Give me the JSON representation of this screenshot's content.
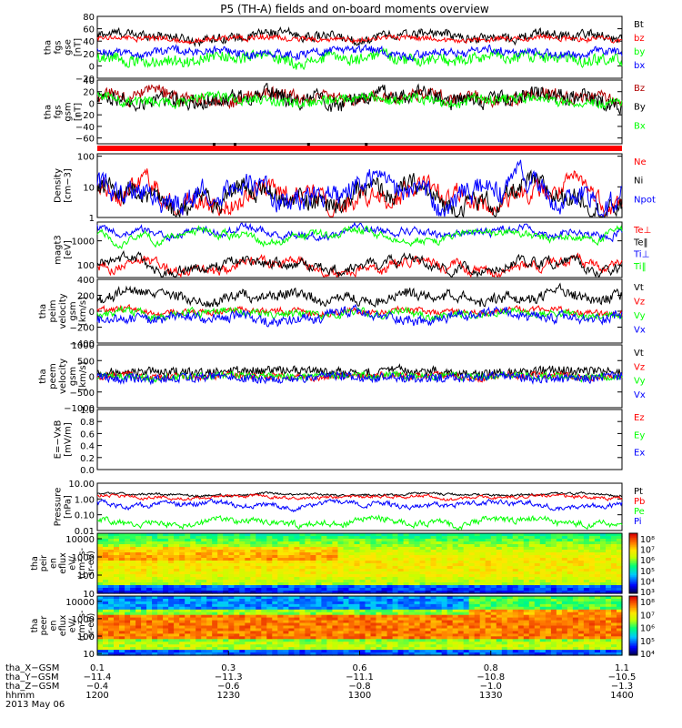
{
  "title": "P5 (TH-A) fields and on-board moments overview",
  "chart_data": {
    "type": "multi-panel-timeseries",
    "title": "P5 (TH-A) fields and on-board moments overview",
    "date_label": "2013 May 06",
    "time_range": [
      "12:00",
      "14:00"
    ],
    "colors": {
      "black": "#000000",
      "red": "#ff0000",
      "green": "#00ff00",
      "blue": "#0000ff",
      "darkred": "#b00000"
    },
    "panels": [
      {
        "id": "fgs-gse",
        "ylabel": [
          "tha",
          "fgs",
          "gse",
          "[nT]"
        ],
        "log": false,
        "ylim": [
          -20,
          80
        ],
        "ticks": [
          "80",
          "60",
          "40",
          "20",
          "0",
          "−20"
        ],
        "tickvals": [
          80,
          60,
          40,
          20,
          0,
          -20
        ],
        "series": [
          {
            "name": "Bt",
            "color": "#000000",
            "mean": 48,
            "amp": 8,
            "noise": 5
          },
          {
            "name": "bz",
            "color": "#ff0000",
            "mean": 44,
            "amp": 4,
            "noise": 3
          },
          {
            "name": "by",
            "color": "#00ff00",
            "mean": 12,
            "amp": 8,
            "noise": 7
          },
          {
            "name": "bx",
            "color": "#0000ff",
            "mean": 22,
            "amp": 6,
            "noise": 5
          }
        ]
      },
      {
        "id": "fgs-gsm",
        "ylabel": [
          "tha",
          "fgs",
          "gsm",
          "[nT]"
        ],
        "log": false,
        "ylim": [
          -70,
          40
        ],
        "ticks": [
          "40",
          "20",
          "0",
          "−20",
          "−40",
          "−60"
        ],
        "tickvals": [
          40,
          20,
          0,
          -20,
          -40,
          -60
        ],
        "series": [
          {
            "name": "Bz",
            "color": "#b00000",
            "mean": 10,
            "amp": 10,
            "noise": 8
          },
          {
            "name": "By",
            "color": "#000000",
            "mean": 8,
            "amp": 12,
            "noise": 10
          },
          {
            "name": "Bx",
            "color": "#00ff00",
            "mean": 5,
            "amp": 8,
            "noise": 6
          }
        ]
      },
      {
        "id": "density",
        "ylabel": [
          "Density",
          "[cm−3]"
        ],
        "log": true,
        "ylim": [
          1,
          120
        ],
        "ticks": [
          "100",
          "10",
          "1"
        ],
        "tickvals": [
          100,
          10,
          1
        ],
        "series": [
          {
            "name": "Ne",
            "color": "#ff0000",
            "mean": 5,
            "amp": 0.5,
            "noise": 0.3
          },
          {
            "name": "Ni",
            "color": "#000000",
            "mean": 4.5,
            "amp": 0.5,
            "noise": 0.3
          },
          {
            "name": "Npot",
            "color": "#0000ff",
            "mean": 6,
            "amp": 0.5,
            "noise": 0.35
          }
        ]
      },
      {
        "id": "temperature",
        "ylabel": [
          "magt3",
          "[eV]"
        ],
        "log": true,
        "ylim": [
          30,
          6000
        ],
        "ticks": [
          "1000",
          "100"
        ],
        "tickvals": [
          1000,
          100
        ],
        "series": [
          {
            "name": "Te⊥",
            "color": "#ff0000",
            "mean": 80,
            "amp": 0.4,
            "noise": 0.15
          },
          {
            "name": "Te‖",
            "color": "#000000",
            "mean": 100,
            "amp": 0.4,
            "noise": 0.15
          },
          {
            "name": "Ti⊥",
            "color": "#0000ff",
            "mean": 2400,
            "amp": 0.3,
            "noise": 0.12
          },
          {
            "name": "Ti‖",
            "color": "#00ff00",
            "mean": 1600,
            "amp": 0.3,
            "noise": 0.12
          }
        ]
      },
      {
        "id": "peim-velocity",
        "ylabel": [
          "tha",
          "peim",
          "velocity",
          "gsm",
          "[km/s]"
        ],
        "log": false,
        "ylim": [
          -400,
          400
        ],
        "ticks": [
          "400",
          "200",
          "0",
          "−200",
          "−400"
        ],
        "tickvals": [
          400,
          200,
          0,
          -200,
          -400
        ],
        "series": [
          {
            "name": "Vt",
            "color": "#000000",
            "mean": 180,
            "amp": 80,
            "noise": 40
          },
          {
            "name": "Vz",
            "color": "#ff0000",
            "mean": 0,
            "amp": 40,
            "noise": 25
          },
          {
            "name": "Vy",
            "color": "#00ff00",
            "mean": -30,
            "amp": 60,
            "noise": 30
          },
          {
            "name": "Vx",
            "color": "#0000ff",
            "mean": -80,
            "amp": 80,
            "noise": 40
          }
        ]
      },
      {
        "id": "peem-velocity",
        "ylabel": [
          "tha",
          "peem",
          "velocity",
          "gsm",
          "[km/s]"
        ],
        "log": false,
        "ylim": [
          -1000,
          1000
        ],
        "ticks": [
          "1000",
          "500",
          "0",
          "−500",
          "−1000"
        ],
        "tickvals": [
          1000,
          500,
          0,
          -500,
          -1000
        ],
        "series": [
          {
            "name": "Vt",
            "color": "#000000",
            "mean": 150,
            "amp": 80,
            "noise": 120
          },
          {
            "name": "Vz",
            "color": "#ff0000",
            "mean": 0,
            "amp": 60,
            "noise": 90
          },
          {
            "name": "Vy",
            "color": "#00ff00",
            "mean": 0,
            "amp": 60,
            "noise": 90
          },
          {
            "name": "Vx",
            "color": "#0000ff",
            "mean": -50,
            "amp": 80,
            "noise": 120
          }
        ]
      },
      {
        "id": "efield",
        "ylabel": [
          "E=−VxB",
          "[mV/m]"
        ],
        "log": false,
        "ylim": [
          0,
          1
        ],
        "ticks": [
          "1.0",
          "0.8",
          "0.6",
          "0.4",
          "0.2",
          "0.0"
        ],
        "tickvals": [
          1,
          0.8,
          0.6,
          0.4,
          0.2,
          0
        ],
        "series": [
          {
            "name": "Ez",
            "color": "#ff0000",
            "empty": true
          },
          {
            "name": "Ey",
            "color": "#00ff00",
            "empty": true
          },
          {
            "name": "Ex",
            "color": "#0000ff",
            "empty": true
          }
        ]
      },
      {
        "id": "pressure",
        "ylabel": [
          "Pressure",
          "[nPa]"
        ],
        "log": true,
        "ylim": [
          0.01,
          10
        ],
        "ticks": [
          "10.00",
          "1.00",
          "0.10",
          "0.01"
        ],
        "tickvals": [
          10,
          1,
          0.1,
          0.01
        ],
        "series": [
          {
            "name": "Pt",
            "color": "#000000",
            "mean": 1.9,
            "amp": 0.1,
            "noise": 0.08
          },
          {
            "name": "Pb",
            "color": "#ff0000",
            "mean": 1.3,
            "amp": 0.15,
            "noise": 0.1
          },
          {
            "name": "Pe",
            "color": "#00ff00",
            "mean": 0.035,
            "amp": 0.3,
            "noise": 0.2
          },
          {
            "name": "Pi",
            "color": "#0000ff",
            "mean": 0.45,
            "amp": 0.25,
            "noise": 0.15
          }
        ]
      }
    ],
    "spectrograms": [
      {
        "id": "peir-energy-flux",
        "ylabel": [
          "tha",
          "peir",
          "en",
          "eflux",
          "eV/",
          "(cm²-s-",
          "sr-eV)"
        ],
        "ylim": [
          10,
          20000
        ],
        "ticks": [
          "10000",
          "1000",
          "100",
          "10"
        ],
        "tickvals": [
          10000,
          1000,
          100,
          10
        ],
        "colorbar": {
          "range": [
            3,
            8
          ],
          "labels": [
            "10⁸",
            "10⁷",
            "10⁶",
            "10⁵",
            "10⁴",
            "10³"
          ]
        }
      },
      {
        "id": "peer-energy-flux",
        "ylabel": [
          "tha",
          "peer",
          "en",
          "eflux",
          "eV/",
          "(cm²-s-",
          "sr-eV)"
        ],
        "ylim": [
          8,
          20000
        ],
        "ticks": [
          "10000",
          "1000",
          "100",
          "10"
        ],
        "tickvals": [
          10000,
          1000,
          100,
          10
        ],
        "colorbar": {
          "range": [
            4,
            8
          ],
          "labels": [
            "10⁸",
            "10⁷",
            "10⁶",
            "10⁵",
            "10⁴"
          ]
        }
      }
    ],
    "xaxis": {
      "row_labels": [
        "tha_X−GSM",
        "tha_Y−GSM",
        "tha_Z−GSM",
        "hhmm"
      ],
      "ticks": [
        {
          "values": [
            "0.1",
            "−11.4",
            "−0.4",
            "1200"
          ]
        },
        {
          "values": [
            "0.3",
            "−11.3",
            "−0.6",
            "1230"
          ]
        },
        {
          "values": [
            "0.6",
            "−11.1",
            "−0.8",
            "1300"
          ]
        },
        {
          "values": [
            "0.8",
            "−10.8",
            "−1.0",
            "1330"
          ]
        },
        {
          "values": [
            "1.1",
            "−10.5",
            "−1.3",
            "1400"
          ]
        }
      ]
    }
  }
}
